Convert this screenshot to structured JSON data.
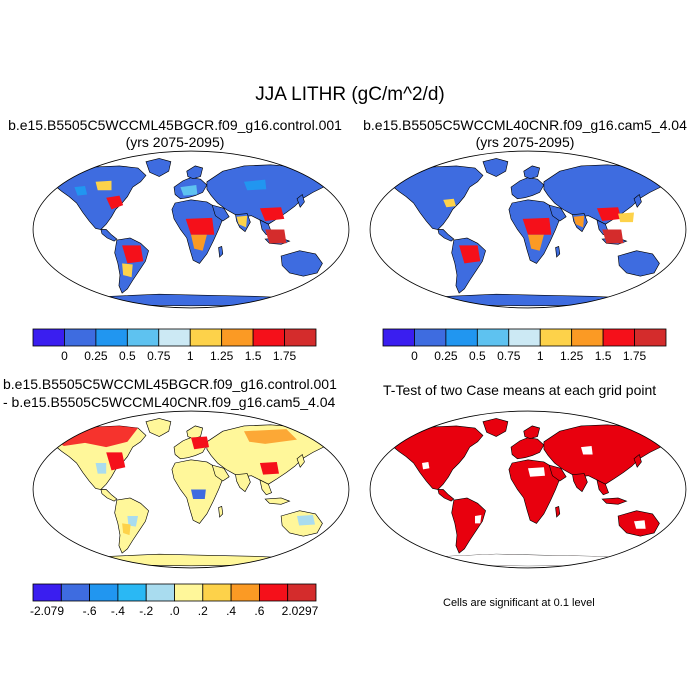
{
  "title": "JJA LITHR (gC/m^2/d)",
  "panels": {
    "p1": {
      "title_line1": "b.e15.B5505C5WCCML45BGCR.f09_g16.control.001",
      "title_line2": "(yrs 2075-2095)"
    },
    "p2": {
      "title_line1": "b.e15.B5505C5WCCML40CNR.f09_g16.cam5_4.04",
      "title_line2": "(yrs 2075-2095)"
    },
    "p3": {
      "title_line1": "b.e15.B5505C5WCCML45BGCR.f09_g16.control.001",
      "title_line2": "- b.e15.B5505C5WCCML40CNR.f09_g16.cam5_4.04"
    },
    "p4": {
      "title": "T-Test of two Case means at each grid point",
      "footnote": "Cells are significant at 0.1 level"
    }
  },
  "colorbars": {
    "absolute": {
      "colors": [
        "#3a1ef0",
        "#3e6ce0",
        "#2196f0",
        "#5ec2f0",
        "#cce9f4",
        "#fdd24a",
        "#fb9a24",
        "#f5101a",
        "#d42c2c"
      ],
      "labels": [
        "0",
        "0.25",
        "0.5",
        "0.75",
        "1",
        "1.25",
        "1.5",
        "1.75"
      ]
    },
    "difference": {
      "colors": [
        "#3a1ef0",
        "#3e6ce0",
        "#2196f0",
        "#2ab8f4",
        "#a9dcef",
        "#fff79a",
        "#fdd24a",
        "#fb9a24",
        "#f5101a",
        "#d42c2c"
      ],
      "labels": [
        "-2.079",
        "-.6",
        "-.4",
        "-.2",
        ".0",
        ".2",
        ".4",
        ".6",
        "2.0297"
      ]
    }
  },
  "map_colors": {
    "ocean": "#ffffff",
    "land_base_absolute": "#3e6ce0",
    "land_base_difference": "#fff79a",
    "significance": "#e8000e"
  }
}
